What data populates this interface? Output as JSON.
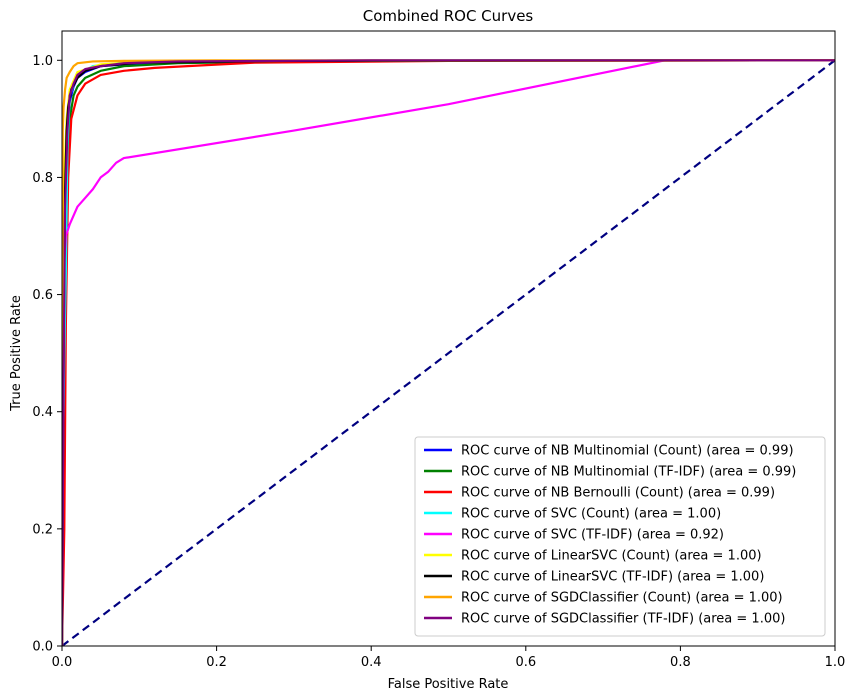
{
  "chart_data": {
    "type": "line",
    "title": "Combined ROC Curves",
    "xlabel": "False Positive Rate",
    "ylabel": "True Positive Rate",
    "xlim": [
      0,
      1
    ],
    "ylim": [
      0,
      1.05
    ],
    "xticks": [
      {
        "value": 0,
        "label": "0.0"
      },
      {
        "value": 0.2,
        "label": "0.2"
      },
      {
        "value": 0.4,
        "label": "0.4"
      },
      {
        "value": 0.6,
        "label": "0.6"
      },
      {
        "value": 0.8,
        "label": "0.8"
      },
      {
        "value": 1.0,
        "label": "1.0"
      }
    ],
    "yticks": [
      {
        "value": 0,
        "label": "0.0"
      },
      {
        "value": 0.2,
        "label": "0.2"
      },
      {
        "value": 0.4,
        "label": "0.4"
      },
      {
        "value": 0.6,
        "label": "0.6"
      },
      {
        "value": 0.8,
        "label": "0.8"
      },
      {
        "value": 1.0,
        "label": "1.0"
      }
    ],
    "grid": false,
    "legend_position": "lower-right",
    "series": [
      {
        "name": "ROC curve of NB Multinomial (Count) (area = 0.99)",
        "color": "#0000ff",
        "x": [
          0,
          0.002,
          0.004,
          0.006,
          0.01,
          0.015,
          0.02,
          0.03,
          0.05,
          0.08,
          0.15,
          0.3,
          0.6,
          1.0
        ],
        "y": [
          0,
          0.35,
          0.7,
          0.85,
          0.93,
          0.955,
          0.97,
          0.98,
          0.99,
          0.993,
          0.996,
          0.998,
          1.0,
          1.0
        ]
      },
      {
        "name": "ROC curve of NB Multinomial (TF-IDF) (area = 0.99)",
        "color": "#008000",
        "x": [
          0,
          0.002,
          0.004,
          0.007,
          0.01,
          0.015,
          0.02,
          0.03,
          0.05,
          0.08,
          0.15,
          0.3,
          0.6,
          1.0
        ],
        "y": [
          0,
          0.3,
          0.65,
          0.82,
          0.9,
          0.94,
          0.955,
          0.97,
          0.982,
          0.99,
          0.995,
          0.998,
          1.0,
          1.0
        ]
      },
      {
        "name": "ROC curve of NB Bernoulli (Count) (area = 0.99)",
        "color": "#ff0000",
        "x": [
          0,
          0.003,
          0.005,
          0.008,
          0.012,
          0.02,
          0.03,
          0.05,
          0.08,
          0.12,
          0.19,
          0.25,
          0.5,
          1.0
        ],
        "y": [
          0,
          0.2,
          0.55,
          0.8,
          0.9,
          0.94,
          0.96,
          0.975,
          0.982,
          0.987,
          0.992,
          0.996,
          0.999,
          1.0
        ]
      },
      {
        "name": "ROC curve of SVC (Count) (area = 1.00)",
        "color": "#00ffff",
        "x": [
          0,
          0.001,
          0.003,
          0.005,
          0.007,
          0.01,
          0.02,
          0.04,
          0.08,
          0.2,
          0.5,
          1.0
        ],
        "y": [
          0,
          0.3,
          0.5,
          0.64,
          0.85,
          0.94,
          0.975,
          0.99,
          0.996,
          0.999,
          1.0,
          1.0
        ]
      },
      {
        "name": "ROC curve of SVC (TF-IDF) (area = 0.92)",
        "color": "#ff00ff",
        "x": [
          0,
          0.001,
          0.003,
          0.005,
          0.01,
          0.02,
          0.03,
          0.04,
          0.05,
          0.06,
          0.07,
          0.08,
          0.3,
          0.5,
          0.78,
          1.0
        ],
        "y": [
          0,
          0.45,
          0.66,
          0.7,
          0.72,
          0.75,
          0.765,
          0.78,
          0.8,
          0.81,
          0.825,
          0.833,
          0.88,
          0.925,
          1.0,
          1.0
        ]
      },
      {
        "name": "ROC curve of LinearSVC (Count) (area = 1.00)",
        "color": "#ffff00",
        "x": [
          0,
          0.001,
          0.003,
          0.006,
          0.01,
          0.02,
          0.05,
          0.1,
          0.3,
          1.0
        ],
        "y": [
          0,
          0.5,
          0.8,
          0.9,
          0.95,
          0.98,
          0.993,
          0.997,
          0.999,
          1.0
        ]
      },
      {
        "name": "ROC curve of LinearSVC (TF-IDF) (area = 1.00)",
        "color": "#000000",
        "x": [
          0,
          0.002,
          0.004,
          0.006,
          0.008,
          0.012,
          0.02,
          0.03,
          0.05,
          0.1,
          0.3,
          1.0
        ],
        "y": [
          0,
          0.5,
          0.78,
          0.88,
          0.92,
          0.95,
          0.97,
          0.982,
          0.99,
          0.996,
          0.999,
          1.0
        ]
      },
      {
        "name": "ROC curve of SGDClassifier (Count) (area = 1.00)",
        "color": "#ffa500",
        "x": [
          0,
          0.001,
          0.002,
          0.004,
          0.006,
          0.01,
          0.015,
          0.02,
          0.04,
          0.08,
          0.2,
          1.0
        ],
        "y": [
          0,
          0.88,
          0.92,
          0.95,
          0.97,
          0.98,
          0.99,
          0.995,
          0.998,
          0.999,
          1.0,
          1.0
        ]
      },
      {
        "name": "ROC curve of SGDClassifier (TF-IDF) (area = 1.00)",
        "color": "#800080",
        "x": [
          0,
          0.002,
          0.004,
          0.007,
          0.01,
          0.015,
          0.02,
          0.03,
          0.05,
          0.08,
          0.15,
          0.4,
          1.0
        ],
        "y": [
          0,
          0.45,
          0.75,
          0.88,
          0.94,
          0.96,
          0.975,
          0.985,
          0.99,
          0.995,
          0.998,
          1.0,
          1.0
        ]
      }
    ],
    "reference_line": {
      "color": "#000080",
      "dashed": true,
      "x": [
        0,
        1
      ],
      "y": [
        0,
        1
      ]
    }
  }
}
